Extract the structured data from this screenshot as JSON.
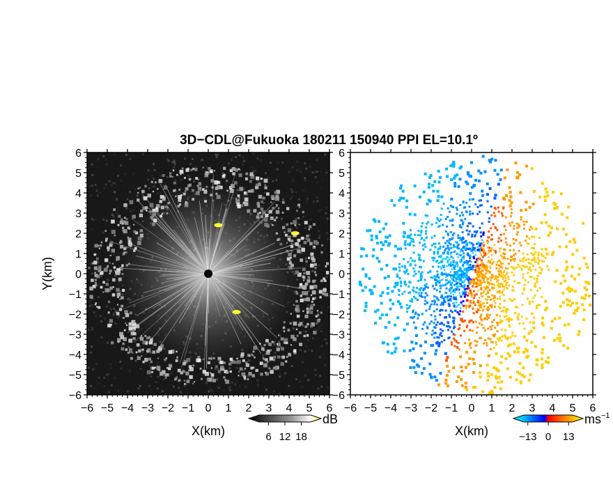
{
  "chart_data": {
    "title": "3D−CDL@Fukuoka 180211 150940 PPI EL=10.1º",
    "panels": [
      {
        "type": "heatmap",
        "name": "reflectivity",
        "xlabel": "X(km)",
        "ylabel": "Y(km)",
        "xlim": [
          -6,
          6
        ],
        "ylim": [
          -6,
          6
        ],
        "x_ticks": [
          "−6",
          "−5",
          "−4",
          "−3",
          "−2",
          "−1",
          "0",
          "1",
          "2",
          "3",
          "4",
          "5",
          "6"
        ],
        "y_ticks": [
          "−6",
          "−5",
          "−4",
          "−3",
          "−2",
          "−1",
          "0",
          "1",
          "2",
          "3",
          "4",
          "5",
          "6"
        ],
        "colorbar": {
          "unit": "dB",
          "ticks": [
            "6",
            "12",
            "18"
          ],
          "range": [
            0,
            24
          ],
          "colors": [
            "#000000",
            "#ffffff",
            "#ffff00"
          ]
        },
        "highlights": [
          {
            "x": 0.5,
            "y": 2.4
          },
          {
            "x": 4.3,
            "y": 2.0
          },
          {
            "x": 1.4,
            "y": -1.9
          }
        ]
      },
      {
        "type": "heatmap",
        "name": "doppler-velocity",
        "xlabel": "X(km)",
        "xlim": [
          -6,
          6
        ],
        "ylim": [
          -6,
          6
        ],
        "x_ticks": [
          "−6",
          "−5",
          "−4",
          "−3",
          "−2",
          "−1",
          "0",
          "1",
          "2",
          "3",
          "4",
          "5",
          "6"
        ],
        "y_ticks": [
          "−6",
          "−5",
          "−4",
          "−3",
          "−2",
          "−1",
          "0",
          "1",
          "2",
          "3",
          "4",
          "5",
          "6"
        ],
        "colorbar": {
          "unit": "ms",
          "unit_exponent": "−1",
          "ticks": [
            "−13",
            "0",
            "13"
          ],
          "range": [
            -20,
            20
          ],
          "colors": [
            "#0000ff",
            "#00bfff",
            "#ff0000",
            "#ffff00"
          ]
        }
      }
    ]
  }
}
